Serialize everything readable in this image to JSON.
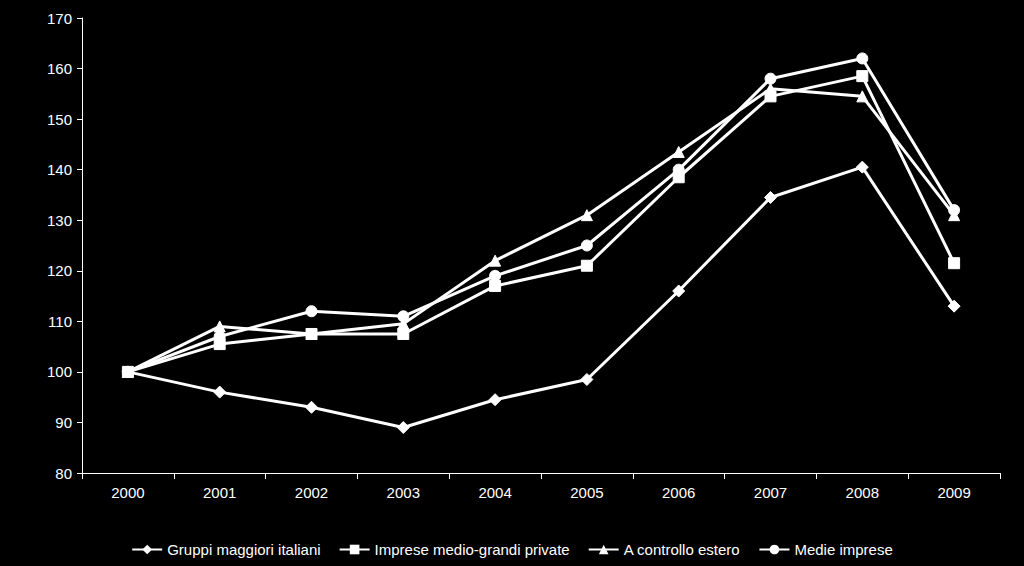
{
  "chart_data": {
    "type": "line",
    "categories": [
      "2000",
      "2001",
      "2002",
      "2003",
      "2004",
      "2005",
      "2006",
      "2007",
      "2008",
      "2009"
    ],
    "series": [
      {
        "name": "Gruppi maggiori italiani",
        "color": "#ffffff",
        "marker": "diamond",
        "values": [
          100,
          96,
          93,
          89,
          94.5,
          98.5,
          116,
          134.5,
          140.5,
          113
        ]
      },
      {
        "name": "Imprese medio-grandi private",
        "color": "#ffffff",
        "marker": "square",
        "values": [
          100,
          105.5,
          107.5,
          107.5,
          117,
          121,
          138.5,
          154.5,
          158.5,
          121.5
        ]
      },
      {
        "name": "A controllo estero",
        "color": "#ffffff",
        "marker": "triangle",
        "values": [
          100,
          109,
          107.5,
          109.5,
          122,
          131,
          143.5,
          156,
          154.5,
          131
        ]
      },
      {
        "name": "Medie imprese",
        "color": "#ffffff",
        "marker": "circle",
        "values": [
          100,
          107,
          112,
          111,
          119,
          125,
          140,
          158,
          162,
          132
        ]
      }
    ],
    "ylim": [
      80,
      170
    ],
    "yticks": [
      80,
      90,
      100,
      110,
      120,
      130,
      140,
      150,
      160,
      170
    ],
    "grid": false,
    "legend": "bottom"
  }
}
